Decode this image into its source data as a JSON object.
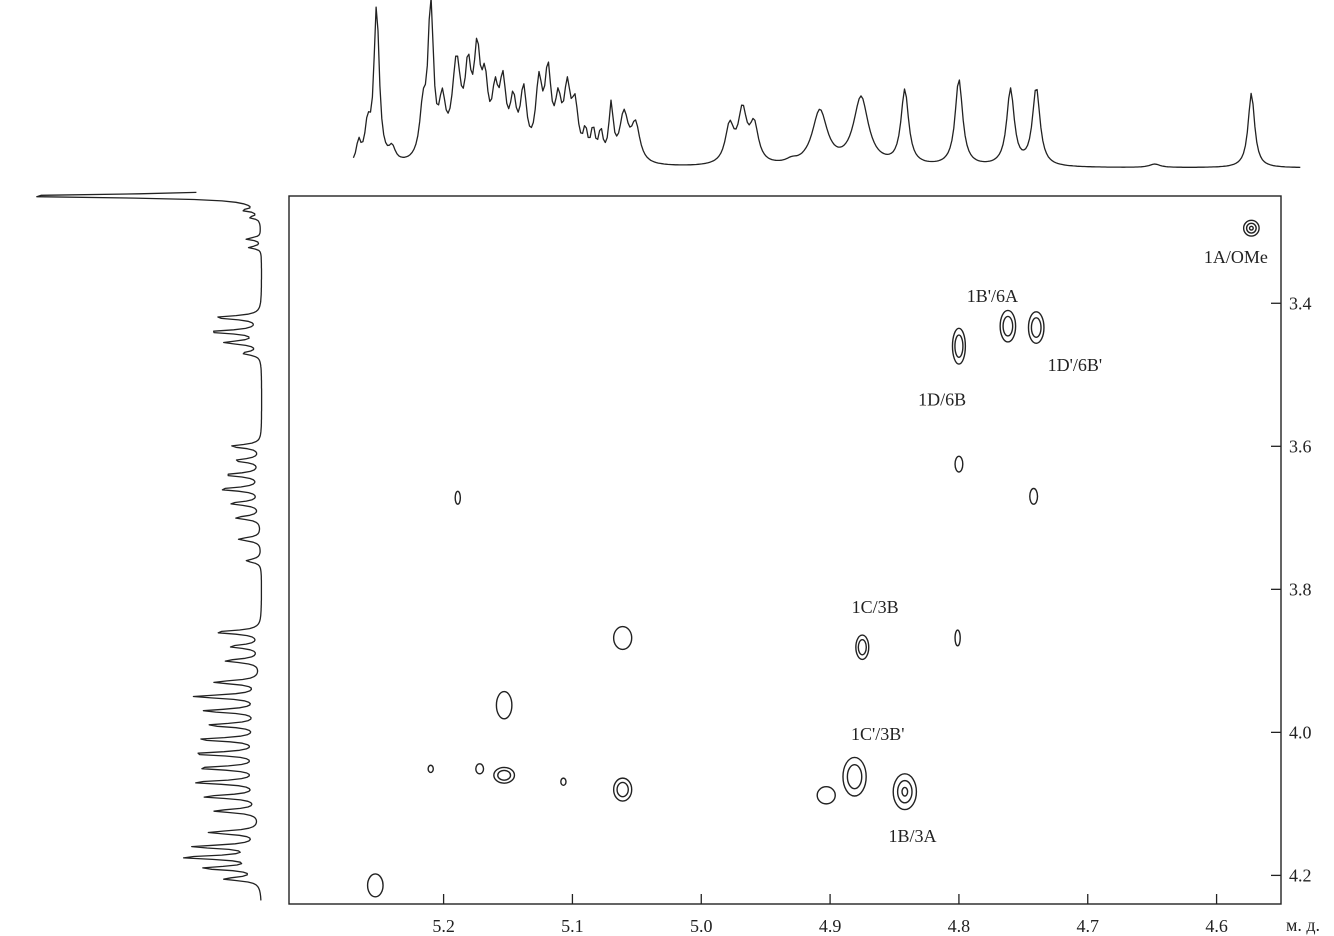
{
  "chart_data": {
    "type": "heatmap",
    "subtype": "2d-nmr-contour",
    "title": "",
    "xlabel": "",
    "ylabel": "",
    "x_unit": "м. д.",
    "x_range": [
      5.32,
      4.55
    ],
    "y_range": [
      3.25,
      4.24
    ],
    "x_reversed": true,
    "x_ticks": [
      {
        "value": 5.2,
        "label": "5.2"
      },
      {
        "value": 5.1,
        "label": "5.1"
      },
      {
        "value": 5.0,
        "label": "5.0"
      },
      {
        "value": 4.9,
        "label": "4.9"
      },
      {
        "value": 4.8,
        "label": "4.8"
      },
      {
        "value": 4.7,
        "label": "4.7"
      },
      {
        "value": 4.6,
        "label": "4.6"
      }
    ],
    "y_ticks": [
      {
        "value": 3.4,
        "label": "3.4"
      },
      {
        "value": 3.6,
        "label": "3.6"
      },
      {
        "value": 3.8,
        "label": "3.8"
      },
      {
        "value": 4.0,
        "label": "4.0"
      },
      {
        "value": 4.2,
        "label": "4.2"
      }
    ],
    "cross_peaks": [
      {
        "x": 4.573,
        "y": 3.295,
        "rx": 0.006,
        "ry": 0.011,
        "levels": 3
      },
      {
        "x": 4.762,
        "y": 3.432,
        "rx": 0.006,
        "ry": 0.022,
        "levels": 2
      },
      {
        "x": 4.74,
        "y": 3.434,
        "rx": 0.006,
        "ry": 0.022,
        "levels": 2
      },
      {
        "x": 4.8,
        "y": 3.46,
        "rx": 0.005,
        "ry": 0.025,
        "levels": 2
      },
      {
        "x": 4.8,
        "y": 3.625,
        "rx": 0.003,
        "ry": 0.011,
        "levels": 1
      },
      {
        "x": 4.742,
        "y": 3.67,
        "rx": 0.003,
        "ry": 0.011,
        "levels": 1
      },
      {
        "x": 5.189,
        "y": 3.672,
        "rx": 0.002,
        "ry": 0.009,
        "levels": 1
      },
      {
        "x": 5.061,
        "y": 3.868,
        "rx": 0.007,
        "ry": 0.016,
        "levels": 1
      },
      {
        "x": 4.875,
        "y": 3.881,
        "rx": 0.005,
        "ry": 0.017,
        "levels": 2
      },
      {
        "x": 4.801,
        "y": 3.868,
        "rx": 0.002,
        "ry": 0.011,
        "levels": 1
      },
      {
        "x": 5.153,
        "y": 3.962,
        "rx": 0.006,
        "ry": 0.019,
        "levels": 1
      },
      {
        "x": 5.21,
        "y": 4.051,
        "rx": 0.002,
        "ry": 0.005,
        "levels": 1
      },
      {
        "x": 5.172,
        "y": 4.051,
        "rx": 0.003,
        "ry": 0.007,
        "levels": 1
      },
      {
        "x": 5.153,
        "y": 4.06,
        "rx": 0.008,
        "ry": 0.011,
        "levels": 2
      },
      {
        "x": 5.107,
        "y": 4.069,
        "rx": 0.002,
        "ry": 0.005,
        "levels": 1
      },
      {
        "x": 5.061,
        "y": 4.08,
        "rx": 0.007,
        "ry": 0.016,
        "levels": 2
      },
      {
        "x": 4.881,
        "y": 4.062,
        "rx": 0.009,
        "ry": 0.027,
        "levels": 2
      },
      {
        "x": 4.842,
        "y": 4.083,
        "rx": 0.009,
        "ry": 0.025,
        "levels": 3
      },
      {
        "x": 4.903,
        "y": 4.088,
        "rx": 0.007,
        "ry": 0.012,
        "levels": 1
      },
      {
        "x": 5.253,
        "y": 4.214,
        "rx": 0.006,
        "ry": 0.016,
        "levels": 1
      }
    ],
    "annotations": [
      {
        "text": "1A/OMe",
        "x": 4.585,
        "y": 3.344
      },
      {
        "text": "1B'/6A",
        "x": 4.774,
        "y": 3.398
      },
      {
        "text": "1D'/6B'",
        "x": 4.71,
        "y": 3.495
      },
      {
        "text": "1D/6B",
        "x": 4.813,
        "y": 3.543
      },
      {
        "text": "1C/3B",
        "x": 4.865,
        "y": 3.833
      },
      {
        "text": "1C'/3B'",
        "x": 4.863,
        "y": 4.011
      },
      {
        "text": "1B/3A",
        "x": 4.836,
        "y": 4.153
      }
    ],
    "top_projection_peaks": [
      [
        5.266,
        0.12,
        0.002
      ],
      [
        5.259,
        0.2,
        0.0025
      ],
      [
        5.252,
        0.92,
        0.0025
      ],
      [
        5.24,
        0.08,
        0.003
      ],
      [
        5.216,
        0.28,
        0.003
      ],
      [
        5.21,
        0.9,
        0.0025
      ],
      [
        5.201,
        0.3,
        0.003
      ],
      [
        5.19,
        0.55,
        0.004
      ],
      [
        5.181,
        0.45,
        0.003
      ],
      [
        5.174,
        0.55,
        0.003
      ],
      [
        5.168,
        0.38,
        0.003
      ],
      [
        5.16,
        0.33,
        0.003
      ],
      [
        5.154,
        0.4,
        0.003
      ],
      [
        5.146,
        0.3,
        0.003
      ],
      [
        5.138,
        0.38,
        0.003
      ],
      [
        5.126,
        0.42,
        0.003
      ],
      [
        5.119,
        0.48,
        0.003
      ],
      [
        5.111,
        0.3,
        0.003
      ],
      [
        5.104,
        0.38,
        0.003
      ],
      [
        5.098,
        0.3,
        0.003
      ],
      [
        5.09,
        0.15,
        0.002
      ],
      [
        5.084,
        0.17,
        0.002
      ],
      [
        5.078,
        0.16,
        0.002
      ],
      [
        5.07,
        0.32,
        0.002
      ],
      [
        5.06,
        0.28,
        0.004
      ],
      [
        5.051,
        0.22,
        0.004
      ],
      [
        4.978,
        0.22,
        0.004
      ],
      [
        4.968,
        0.3,
        0.004
      ],
      [
        4.959,
        0.22,
        0.004
      ],
      [
        4.908,
        0.32,
        0.007
      ],
      [
        4.876,
        0.4,
        0.007
      ],
      [
        4.842,
        0.44,
        0.0035
      ],
      [
        4.8,
        0.51,
        0.0035
      ],
      [
        4.76,
        0.45,
        0.0035
      ],
      [
        4.74,
        0.46,
        0.0035
      ],
      [
        4.648,
        0.02,
        0.005
      ],
      [
        4.573,
        0.44,
        0.003
      ],
      [
        4.93,
        0.02,
        0.005
      ]
    ],
    "left_projection_peaks": [
      [
        3.25,
        0.98,
        0.003
      ],
      [
        3.27,
        0.06,
        0.002
      ],
      [
        3.28,
        0.04,
        0.002
      ],
      [
        3.31,
        0.06,
        0.002
      ],
      [
        3.322,
        0.05,
        0.002
      ],
      [
        3.42,
        0.18,
        0.003
      ],
      [
        3.44,
        0.2,
        0.003
      ],
      [
        3.455,
        0.14,
        0.003
      ],
      [
        3.47,
        0.07,
        0.003
      ],
      [
        3.6,
        0.12,
        0.003
      ],
      [
        3.62,
        0.1,
        0.003
      ],
      [
        3.64,
        0.14,
        0.003
      ],
      [
        3.66,
        0.16,
        0.003
      ],
      [
        3.68,
        0.12,
        0.003
      ],
      [
        3.7,
        0.1,
        0.003
      ],
      [
        3.73,
        0.09,
        0.003
      ],
      [
        3.76,
        0.06,
        0.003
      ],
      [
        3.86,
        0.18,
        0.003
      ],
      [
        3.88,
        0.12,
        0.003
      ],
      [
        3.9,
        0.14,
        0.003
      ],
      [
        3.93,
        0.18,
        0.003
      ],
      [
        3.95,
        0.26,
        0.003
      ],
      [
        3.97,
        0.22,
        0.003
      ],
      [
        3.99,
        0.2,
        0.003
      ],
      [
        4.01,
        0.24,
        0.003
      ],
      [
        4.03,
        0.26,
        0.003
      ],
      [
        4.05,
        0.24,
        0.003
      ],
      [
        4.07,
        0.26,
        0.003
      ],
      [
        4.09,
        0.22,
        0.003
      ],
      [
        4.11,
        0.18,
        0.003
      ],
      [
        4.14,
        0.2,
        0.003
      ],
      [
        4.16,
        0.26,
        0.003
      ],
      [
        4.175,
        0.3,
        0.003
      ],
      [
        4.19,
        0.22,
        0.003
      ],
      [
        4.205,
        0.14,
        0.003
      ]
    ]
  }
}
